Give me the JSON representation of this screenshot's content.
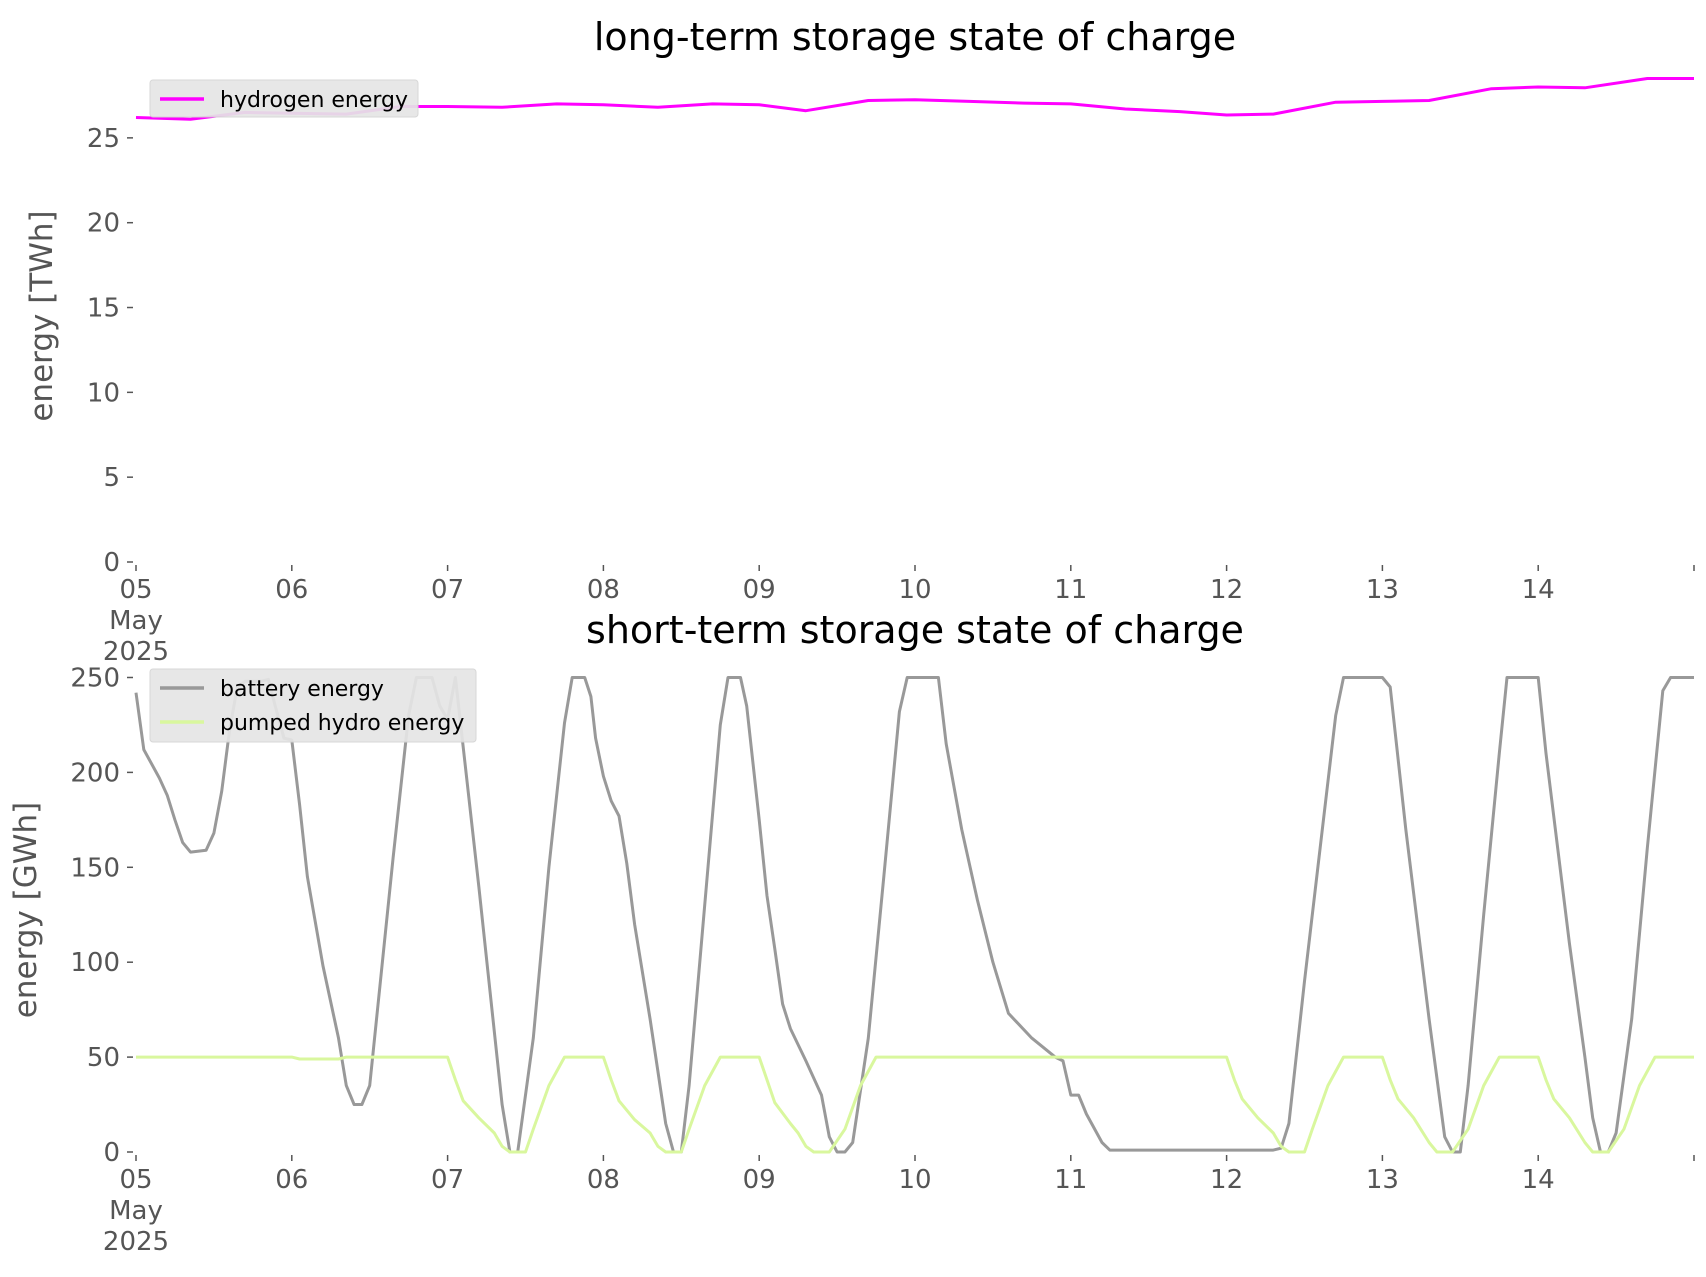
{
  "chart_data": [
    {
      "type": "line",
      "title": "long-term storage state of charge",
      "ylabel": "energy [TWh]",
      "xlabel": "",
      "ylim": [
        0,
        29
      ],
      "yticks": [
        0,
        5,
        10,
        15,
        20,
        25
      ],
      "xlim": [
        0,
        10
      ],
      "xticks": [
        {
          "x": 0,
          "lines": [
            "05",
            "May",
            "2025"
          ]
        },
        {
          "x": 1,
          "lines": [
            "06"
          ]
        },
        {
          "x": 2,
          "lines": [
            "07"
          ]
        },
        {
          "x": 3,
          "lines": [
            "08"
          ]
        },
        {
          "x": 4,
          "lines": [
            "09"
          ]
        },
        {
          "x": 5,
          "lines": [
            "10"
          ]
        },
        {
          "x": 6,
          "lines": [
            "11"
          ]
        },
        {
          "x": 7,
          "lines": [
            "12"
          ]
        },
        {
          "x": 8,
          "lines": [
            "13"
          ]
        },
        {
          "x": 9,
          "lines": [
            "14"
          ]
        }
      ],
      "legend_position": "top-left",
      "grid": false,
      "series": [
        {
          "name": "hydrogen energy",
          "color": "#ff00ff",
          "points": [
            [
              0,
              26.2
            ],
            [
              0.35,
              26.1
            ],
            [
              0.7,
              26.5
            ],
            [
              1.0,
              26.45
            ],
            [
              1.35,
              26.4
            ],
            [
              1.7,
              26.85
            ],
            [
              2.0,
              26.85
            ],
            [
              2.35,
              26.8
            ],
            [
              2.7,
              27.0
            ],
            [
              3.0,
              26.95
            ],
            [
              3.35,
              26.8
            ],
            [
              3.7,
              27.0
            ],
            [
              4.0,
              26.95
            ],
            [
              4.3,
              26.6
            ],
            [
              4.7,
              27.2
            ],
            [
              5.0,
              27.25
            ],
            [
              5.35,
              27.15
            ],
            [
              5.7,
              27.05
            ],
            [
              6.0,
              27.0
            ],
            [
              6.35,
              26.7
            ],
            [
              6.7,
              26.55
            ],
            [
              7.0,
              26.35
            ],
            [
              7.3,
              26.4
            ],
            [
              7.7,
              27.1
            ],
            [
              8.0,
              27.15
            ],
            [
              8.3,
              27.2
            ],
            [
              8.7,
              27.9
            ],
            [
              9.0,
              28.0
            ],
            [
              9.3,
              27.95
            ],
            [
              9.7,
              28.5
            ],
            [
              10.0,
              28.5
            ]
          ]
        }
      ]
    },
    {
      "type": "line",
      "title": "short-term storage state of charge",
      "ylabel": "energy [GWh]",
      "xlabel": "",
      "ylim": [
        0,
        255
      ],
      "yticks": [
        0,
        50,
        100,
        150,
        200,
        250
      ],
      "xlim": [
        0,
        10
      ],
      "xticks": [
        {
          "x": 0,
          "lines": [
            "05",
            "May",
            "2025"
          ]
        },
        {
          "x": 1,
          "lines": [
            "06"
          ]
        },
        {
          "x": 2,
          "lines": [
            "07"
          ]
        },
        {
          "x": 3,
          "lines": [
            "08"
          ]
        },
        {
          "x": 4,
          "lines": [
            "09"
          ]
        },
        {
          "x": 5,
          "lines": [
            "10"
          ]
        },
        {
          "x": 6,
          "lines": [
            "11"
          ]
        },
        {
          "x": 7,
          "lines": [
            "12"
          ]
        },
        {
          "x": 8,
          "lines": [
            "13"
          ]
        },
        {
          "x": 9,
          "lines": [
            "14"
          ]
        }
      ],
      "legend_position": "top-left",
      "grid": false,
      "series": [
        {
          "name": "battery energy",
          "color": "#999999",
          "points": [
            [
              0,
              242
            ],
            [
              0.05,
              212
            ],
            [
              0.15,
              197
            ],
            [
              0.2,
              188
            ],
            [
              0.25,
              175
            ],
            [
              0.3,
              163
            ],
            [
              0.35,
              158
            ],
            [
              0.45,
              159
            ],
            [
              0.5,
              168
            ],
            [
              0.55,
              190
            ],
            [
              0.6,
              222
            ],
            [
              0.65,
              245
            ],
            [
              0.7,
              248
            ],
            [
              0.8,
              248
            ],
            [
              0.85,
              249
            ],
            [
              0.9,
              233
            ],
            [
              0.95,
              218
            ],
            [
              1.0,
              217
            ],
            [
              1.05,
              183
            ],
            [
              1.1,
              145
            ],
            [
              1.2,
              98
            ],
            [
              1.3,
              60
            ],
            [
              1.35,
              35
            ],
            [
              1.4,
              25
            ],
            [
              1.45,
              25
            ],
            [
              1.5,
              35
            ],
            [
              1.55,
              75
            ],
            [
              1.65,
              155
            ],
            [
              1.75,
              230
            ],
            [
              1.8,
              250
            ],
            [
              1.9,
              250
            ],
            [
              1.95,
              235
            ],
            [
              2.0,
              228
            ],
            [
              2.05,
              250
            ],
            [
              2.2,
              140
            ],
            [
              2.35,
              25
            ],
            [
              2.4,
              0
            ],
            [
              2.45,
              0
            ],
            [
              2.55,
              60
            ],
            [
              2.65,
              150
            ],
            [
              2.75,
              226
            ],
            [
              2.8,
              250
            ],
            [
              2.88,
              250
            ],
            [
              2.92,
              240
            ],
            [
              2.95,
              218
            ],
            [
              3.0,
              198
            ],
            [
              3.05,
              185
            ],
            [
              3.1,
              177
            ],
            [
              3.15,
              152
            ],
            [
              3.2,
              120
            ],
            [
              3.3,
              70
            ],
            [
              3.4,
              15
            ],
            [
              3.45,
              0
            ],
            [
              3.5,
              0
            ],
            [
              3.55,
              35
            ],
            [
              3.65,
              130
            ],
            [
              3.75,
              225
            ],
            [
              3.8,
              250
            ],
            [
              3.88,
              250
            ],
            [
              3.92,
              235
            ],
            [
              4.0,
              175
            ],
            [
              4.05,
              135
            ],
            [
              4.1,
              107
            ],
            [
              4.15,
              78
            ],
            [
              4.2,
              65
            ],
            [
              4.3,
              48
            ],
            [
              4.4,
              30
            ],
            [
              4.45,
              8
            ],
            [
              4.5,
              0
            ],
            [
              4.55,
              0
            ],
            [
              4.6,
              5
            ],
            [
              4.7,
              60
            ],
            [
              4.8,
              145
            ],
            [
              4.9,
              232
            ],
            [
              4.95,
              250
            ],
            [
              5.0,
              250
            ],
            [
              5.15,
              250
            ],
            [
              5.2,
              215
            ],
            [
              5.3,
              170
            ],
            [
              5.4,
              133
            ],
            [
              5.5,
              100
            ],
            [
              5.6,
              73
            ],
            [
              5.75,
              60
            ],
            [
              5.9,
              50
            ],
            [
              5.95,
              48
            ],
            [
              6.0,
              30
            ],
            [
              6.05,
              30
            ],
            [
              6.1,
              20
            ],
            [
              6.2,
              5
            ],
            [
              6.25,
              1
            ],
            [
              6.4,
              1
            ],
            [
              7.0,
              1
            ],
            [
              7.3,
              1
            ],
            [
              7.35,
              2
            ],
            [
              7.4,
              15
            ],
            [
              7.5,
              90
            ],
            [
              7.6,
              160
            ],
            [
              7.7,
              230
            ],
            [
              7.75,
              250
            ],
            [
              8.0,
              250
            ],
            [
              8.05,
              245
            ],
            [
              8.15,
              170
            ],
            [
              8.3,
              70
            ],
            [
              8.4,
              8
            ],
            [
              8.45,
              0
            ],
            [
              8.5,
              0
            ],
            [
              8.55,
              35
            ],
            [
              8.65,
              125
            ],
            [
              8.75,
              210
            ],
            [
              8.8,
              250
            ],
            [
              9.0,
              250
            ],
            [
              9.05,
              210
            ],
            [
              9.2,
              110
            ],
            [
              9.3,
              50
            ],
            [
              9.35,
              18
            ],
            [
              9.4,
              0
            ],
            [
              9.45,
              0
            ],
            [
              9.5,
              10
            ],
            [
              9.6,
              70
            ],
            [
              9.7,
              160
            ],
            [
              9.8,
              243
            ],
            [
              9.85,
              250
            ],
            [
              10.0,
              250
            ]
          ]
        },
        {
          "name": "pumped hydro energy",
          "color": "#d9f79e",
          "points": [
            [
              0,
              50
            ],
            [
              1.0,
              50
            ],
            [
              1.05,
              49
            ],
            [
              1.3,
              49
            ],
            [
              1.35,
              50
            ],
            [
              2.0,
              50
            ],
            [
              2.05,
              38
            ],
            [
              2.1,
              27
            ],
            [
              2.2,
              18
            ],
            [
              2.3,
              10
            ],
            [
              2.35,
              3
            ],
            [
              2.4,
              0
            ],
            [
              2.5,
              0
            ],
            [
              2.55,
              12
            ],
            [
              2.65,
              35
            ],
            [
              2.75,
              50
            ],
            [
              3.0,
              50
            ],
            [
              3.05,
              38
            ],
            [
              3.1,
              27
            ],
            [
              3.2,
              17
            ],
            [
              3.3,
              10
            ],
            [
              3.35,
              3
            ],
            [
              3.4,
              0
            ],
            [
              3.5,
              0
            ],
            [
              3.55,
              12
            ],
            [
              3.65,
              35
            ],
            [
              3.75,
              50
            ],
            [
              4.0,
              50
            ],
            [
              4.05,
              38
            ],
            [
              4.1,
              26
            ],
            [
              4.2,
              15
            ],
            [
              4.25,
              10
            ],
            [
              4.3,
              3
            ],
            [
              4.35,
              0
            ],
            [
              4.45,
              0
            ],
            [
              4.55,
              12
            ],
            [
              4.65,
              35
            ],
            [
              4.75,
              50
            ],
            [
              7.0,
              50
            ],
            [
              7.05,
              38
            ],
            [
              7.1,
              28
            ],
            [
              7.2,
              18
            ],
            [
              7.3,
              10
            ],
            [
              7.35,
              3
            ],
            [
              7.4,
              0
            ],
            [
              7.5,
              0
            ],
            [
              7.55,
              12
            ],
            [
              7.65,
              35
            ],
            [
              7.75,
              50
            ],
            [
              8.0,
              50
            ],
            [
              8.05,
              38
            ],
            [
              8.1,
              28
            ],
            [
              8.2,
              18
            ],
            [
              8.3,
              5
            ],
            [
              8.35,
              0
            ],
            [
              8.45,
              0
            ],
            [
              8.55,
              12
            ],
            [
              8.65,
              35
            ],
            [
              8.75,
              50
            ],
            [
              9.0,
              50
            ],
            [
              9.05,
              38
            ],
            [
              9.1,
              28
            ],
            [
              9.2,
              18
            ],
            [
              9.3,
              5
            ],
            [
              9.35,
              0
            ],
            [
              9.45,
              0
            ],
            [
              9.55,
              12
            ],
            [
              9.65,
              35
            ],
            [
              9.75,
              50
            ],
            [
              10.0,
              50
            ]
          ]
        }
      ]
    }
  ]
}
